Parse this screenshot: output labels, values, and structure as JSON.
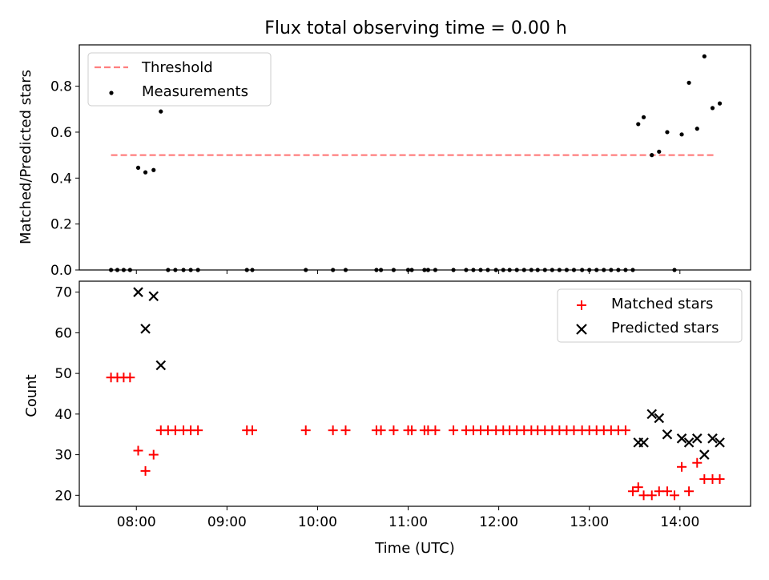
{
  "title": "Flux total observing time = 0.00 h",
  "chart_data": [
    {
      "type": "scatter",
      "panel": "top",
      "ylabel": "Matched/Predicted stars",
      "xlim": [
        7.37,
        14.78
      ],
      "ylim": [
        0.0,
        0.98
      ],
      "yticks": [
        "0.0",
        "0.2",
        "0.4",
        "0.6",
        "0.8"
      ],
      "legend_position": "upper-left",
      "threshold": {
        "name": "Threshold",
        "y": 0.5,
        "x_range": [
          7.72,
          14.4
        ],
        "color": "#ff7f7f"
      },
      "series": [
        {
          "name": "Measurements",
          "color": "#000000",
          "x": [
            7.72,
            7.79,
            7.86,
            7.93,
            8.02,
            8.1,
            8.19,
            8.27,
            8.35,
            8.43,
            8.52,
            8.6,
            8.68,
            9.22,
            9.28,
            9.87,
            10.17,
            10.31,
            10.65,
            10.7,
            10.84,
            11.0,
            11.04,
            11.18,
            11.22,
            11.3,
            11.5,
            11.64,
            11.72,
            11.8,
            11.88,
            11.97,
            12.05,
            12.12,
            12.2,
            12.28,
            12.36,
            12.43,
            12.51,
            12.59,
            12.67,
            12.75,
            12.83,
            12.92,
            13.0,
            13.08,
            13.16,
            13.24,
            13.32,
            13.4,
            13.48,
            13.54,
            13.6,
            13.69,
            13.77,
            13.86,
            13.94,
            14.02,
            14.1,
            14.19,
            14.27,
            14.36,
            14.44
          ],
          "y": [
            0,
            0,
            0,
            0,
            0.445,
            0.425,
            0.435,
            0.69,
            0,
            0,
            0,
            0,
            0,
            0,
            0,
            0,
            0,
            0,
            0,
            0,
            0,
            0,
            0,
            0,
            0,
            0,
            0,
            0,
            0,
            0,
            0,
            0,
            0,
            0,
            0,
            0,
            0,
            0,
            0,
            0,
            0,
            0,
            0,
            0,
            0,
            0,
            0,
            0,
            0,
            0,
            0,
            0.635,
            0.665,
            0.5,
            0.515,
            0.6,
            0,
            0.59,
            0.815,
            0.615,
            0.93,
            0.705,
            0.725
          ]
        }
      ]
    },
    {
      "type": "scatter",
      "panel": "bottom",
      "xlabel": "Time (UTC)",
      "ylabel": "Count",
      "xlim": [
        7.37,
        14.78
      ],
      "ylim": [
        17.3,
        72.7
      ],
      "xticks": [
        {
          "value": 8,
          "label": "08:00"
        },
        {
          "value": 9,
          "label": "09:00"
        },
        {
          "value": 10,
          "label": "10:00"
        },
        {
          "value": 11,
          "label": "11:00"
        },
        {
          "value": 12,
          "label": "12:00"
        },
        {
          "value": 13,
          "label": "13:00"
        },
        {
          "value": 14,
          "label": "14:00"
        }
      ],
      "yticks": [
        "20",
        "30",
        "40",
        "50",
        "60",
        "70"
      ],
      "legend_position": "upper-right",
      "series": [
        {
          "name": "Matched stars",
          "marker": "plus",
          "color": "#ff0000",
          "x": [
            7.72,
            7.79,
            7.86,
            7.93,
            8.02,
            8.1,
            8.19,
            8.27,
            8.35,
            8.43,
            8.52,
            8.6,
            8.68,
            9.22,
            9.28,
            9.87,
            10.17,
            10.31,
            10.65,
            10.7,
            10.84,
            11.0,
            11.04,
            11.18,
            11.22,
            11.3,
            11.5,
            11.64,
            11.72,
            11.8,
            11.88,
            11.97,
            12.05,
            12.12,
            12.2,
            12.28,
            12.36,
            12.43,
            12.51,
            12.59,
            12.67,
            12.75,
            12.83,
            12.92,
            13.0,
            13.08,
            13.16,
            13.24,
            13.32,
            13.4,
            13.48,
            13.54,
            13.6,
            13.69,
            13.77,
            13.86,
            13.94,
            14.02,
            14.1,
            14.19,
            14.27,
            14.36,
            14.44
          ],
          "y": [
            49,
            49,
            49,
            49,
            31,
            26,
            30,
            36,
            36,
            36,
            36,
            36,
            36,
            36,
            36,
            36,
            36,
            36,
            36,
            36,
            36,
            36,
            36,
            36,
            36,
            36,
            36,
            36,
            36,
            36,
            36,
            36,
            36,
            36,
            36,
            36,
            36,
            36,
            36,
            36,
            36,
            36,
            36,
            36,
            36,
            36,
            36,
            36,
            36,
            36,
            21,
            22,
            20,
            20,
            21,
            21,
            20,
            27,
            21,
            28,
            24,
            24,
            24
          ]
        },
        {
          "name": "Predicted stars",
          "marker": "x",
          "color": "#000000",
          "x": [
            8.02,
            8.1,
            8.19,
            8.27,
            13.54,
            13.6,
            13.69,
            13.77,
            13.86,
            14.02,
            14.1,
            14.19,
            14.27,
            14.36,
            14.44
          ],
          "y": [
            70,
            61,
            69,
            52,
            33,
            33,
            40,
            39,
            35,
            34,
            33,
            34,
            30,
            34,
            33
          ]
        }
      ]
    }
  ]
}
